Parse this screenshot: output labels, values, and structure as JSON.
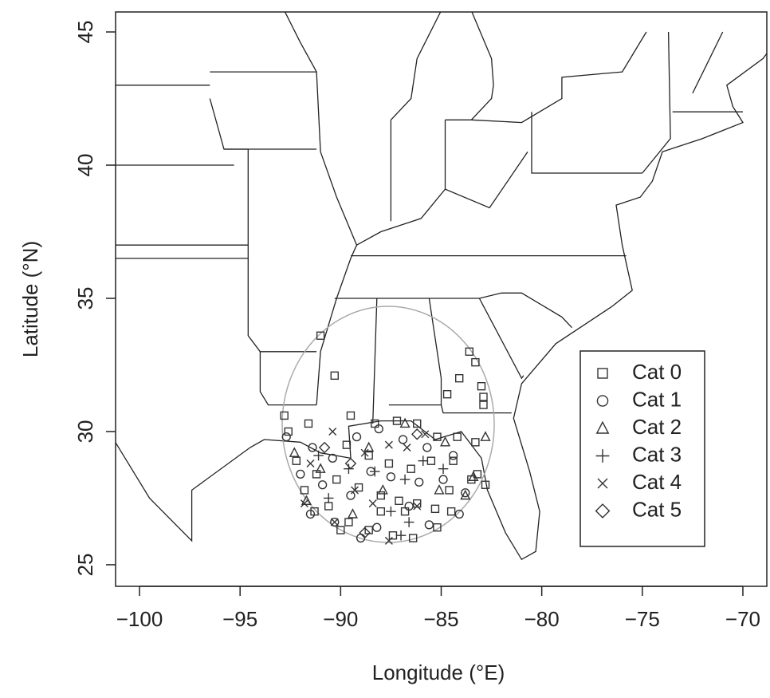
{
  "chart_data": {
    "type": "scatter",
    "x_label": "Longitude (°E)",
    "y_label": "Latitude (°N)",
    "xlim": [
      -101.19,
      -68.81
    ],
    "ylim": [
      24.19,
      45.75
    ],
    "xticks": [
      {
        "value": -100,
        "label": "−100"
      },
      {
        "value": -95,
        "label": "−95"
      },
      {
        "value": -90,
        "label": "−90"
      },
      {
        "value": -85,
        "label": "−85"
      },
      {
        "value": -80,
        "label": "−80"
      },
      {
        "value": -75,
        "label": "−75"
      },
      {
        "value": -70,
        "label": "−70"
      }
    ],
    "yticks": [
      25,
      30,
      35,
      40,
      45
    ],
    "legend": "right",
    "series": [
      {
        "name": "Cat 0",
        "marker": "square",
        "color": "#333333",
        "x": [
          -92.8,
          -92.6,
          -91,
          -90.3,
          -83.6,
          -83.3,
          -84.1,
          -83,
          -84.7,
          -82.9,
          -82.9,
          -91.6,
          -89.5,
          -88.3,
          -87.2,
          -86.2,
          -85.2,
          -84.2,
          -83.3,
          -89.7,
          -88.6,
          -87.6,
          -86.5,
          -85.5,
          -84.4,
          -92.2,
          -91.2,
          -90.2,
          -89.1,
          -88,
          -87.1,
          -86.2,
          -85.3,
          -84.6,
          -83.5,
          -91.8,
          -90.6,
          -89.6,
          -88.6,
          -87.4,
          -86.4,
          -85.2,
          -90,
          -88,
          -86.8,
          -91.3,
          -84.5,
          -83.2,
          -82.8
        ],
        "values": [
          30.6,
          30,
          33.6,
          32.1,
          33,
          32.6,
          32,
          31.7,
          31.4,
          31.3,
          31,
          30.3,
          30.6,
          30.3,
          30.4,
          30.3,
          29.8,
          29.8,
          29.6,
          29.5,
          29.1,
          28.8,
          28.6,
          28.9,
          28.9,
          28.9,
          28.4,
          28.2,
          27.9,
          27.6,
          27.4,
          27.3,
          27.1,
          27.8,
          28.2,
          27.8,
          27.2,
          26.6,
          26.3,
          26.1,
          26,
          26.4,
          26.3,
          27,
          27,
          27,
          27,
          28.4,
          28
        ]
      },
      {
        "name": "Cat 1",
        "marker": "circle",
        "color": "#333333",
        "x": [
          -92.7,
          -91.4,
          -90.4,
          -89.2,
          -88.1,
          -86.9,
          -85.7,
          -84.4,
          -92,
          -90.9,
          -89.5,
          -88.5,
          -87.5,
          -86.1,
          -84.9,
          -83.8,
          -91.5,
          -90.3,
          -89,
          -88.2,
          -86.6,
          -85.6,
          -84.1
        ],
        "values": [
          29.8,
          29.4,
          29,
          29.8,
          30.1,
          29.7,
          29.4,
          29.1,
          28.4,
          28,
          27.6,
          28.5,
          28.3,
          28.1,
          28.2,
          27.7,
          26.9,
          26.6,
          26,
          26.4,
          27.2,
          26.5,
          26.9
        ]
      },
      {
        "name": "Cat 2",
        "marker": "triangle",
        "color": "#333333",
        "x": [
          -92.3,
          -91,
          -88.6,
          -86.8,
          -84.8,
          -82.8,
          -83.4,
          -87.9,
          -85.1,
          -89.4,
          -91.7,
          -83.8
        ],
        "values": [
          29.2,
          28.6,
          29.4,
          30.3,
          29.6,
          29.8,
          28.3,
          27.8,
          27.8,
          26.9,
          27.4,
          27.6
        ]
      },
      {
        "name": "Cat 3",
        "marker": "plus",
        "color": "#333333",
        "x": [
          -91.1,
          -89.6,
          -88.3,
          -86.8,
          -87.5,
          -86.6,
          -87,
          -85.9,
          -90.6,
          -84.9
        ],
        "values": [
          29.1,
          28.6,
          28.5,
          28.2,
          27,
          26.6,
          26.1,
          28.9,
          27.5,
          28.6
        ]
      },
      {
        "name": "Cat 4",
        "marker": "cross",
        "color": "#333333",
        "x": [
          -91.5,
          -90.4,
          -88.8,
          -87.6,
          -86.7,
          -89.3,
          -88.4,
          -86.2,
          -87.6,
          -90.3,
          -91.8,
          -85.8
        ],
        "values": [
          28.8,
          30,
          29.2,
          29.5,
          29.4,
          27.8,
          27.3,
          27.2,
          25.9,
          26.6,
          27.3,
          29.9
        ]
      },
      {
        "name": "Cat 5",
        "marker": "diamond",
        "color": "#333333",
        "x": [
          -88.8,
          -90.8,
          -86.2,
          -89.5
        ],
        "values": [
          26.2,
          29.4,
          29.9,
          28.8
        ]
      }
    ]
  }
}
